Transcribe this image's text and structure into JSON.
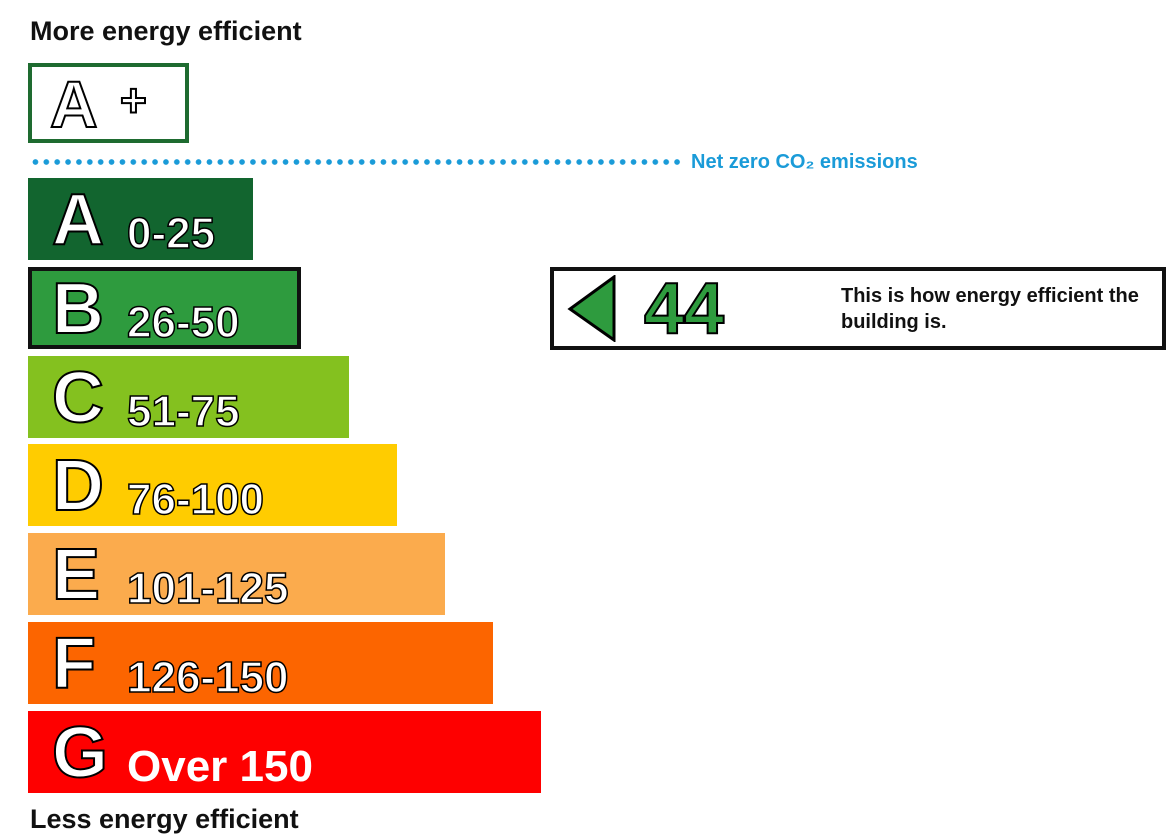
{
  "headings": {
    "top": "More energy efficient",
    "bottom": "Less energy efficient"
  },
  "net_zero_label": "Net zero CO₂ emissions",
  "chart_data": {
    "type": "bar",
    "title": "",
    "orientation": "horizontal",
    "rating_scale": [
      {
        "letter": "A",
        "range": "0-25",
        "color": "#12652f"
      },
      {
        "letter": "B",
        "range": "26-50",
        "color": "#2e9b3e"
      },
      {
        "letter": "C",
        "range": "51-75",
        "color": "#84c11f"
      },
      {
        "letter": "D",
        "range": "76-100",
        "color": "#ffcc00"
      },
      {
        "letter": "E",
        "range": "101-125",
        "color": "#fbab4d"
      },
      {
        "letter": "F",
        "range": "126-150",
        "color": "#fc6500"
      },
      {
        "letter": "G",
        "range": "Over 150",
        "color": "#fe0000"
      }
    ],
    "top_band": {
      "letter": "A",
      "suffix": "+",
      "color": "#1e6b30"
    },
    "current_rating": {
      "band": "B",
      "score": "44",
      "color": "#2e9b3e"
    },
    "caption": "This is how energy efficient the building is.",
    "dots_color": "#1a9bd8"
  }
}
